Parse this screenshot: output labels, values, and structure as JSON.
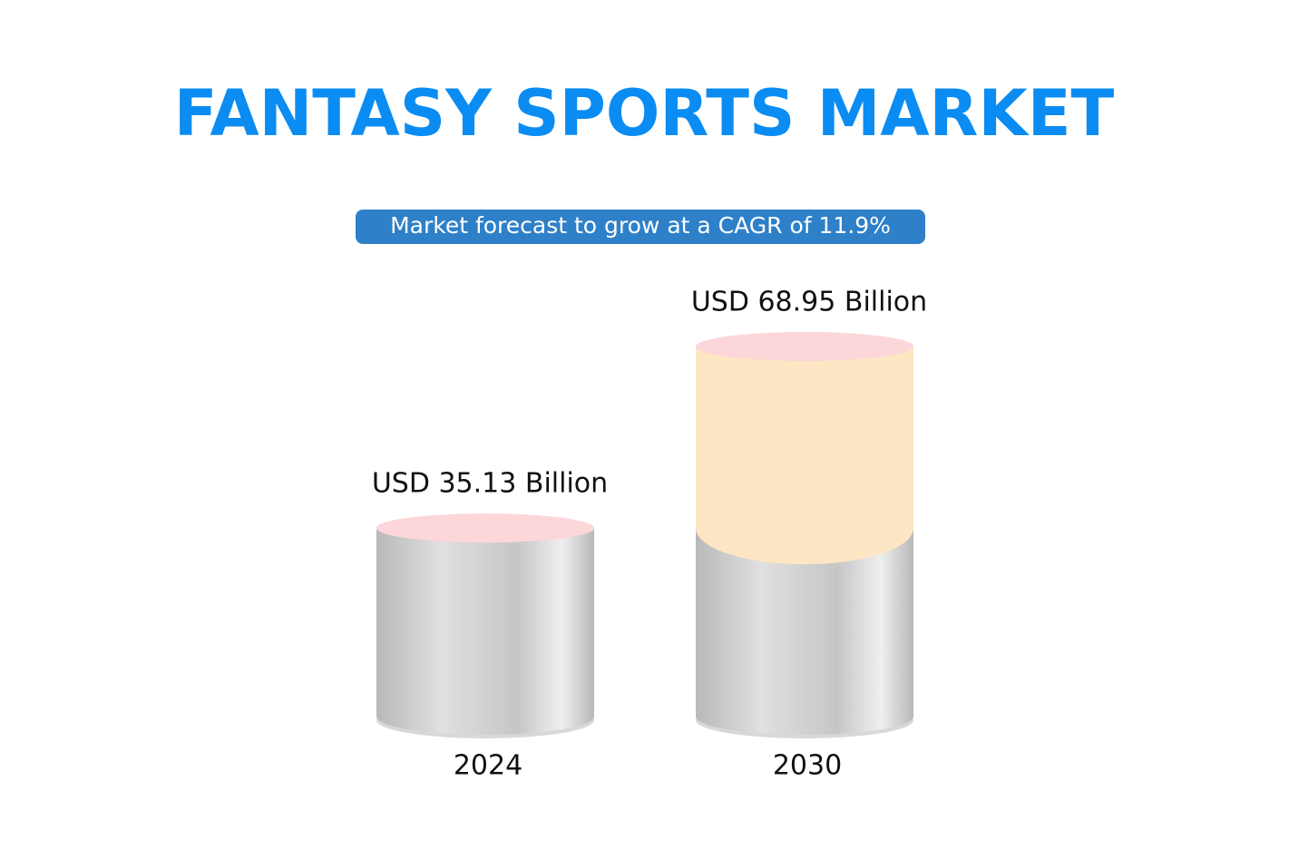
{
  "chart_data": {
    "type": "cylinder",
    "title": "FANTASY SPORTS MARKET",
    "subtitle": "Market forecast to grow at a CAGR of 11.9%",
    "categories": [
      "2024",
      "2030"
    ],
    "values": [
      35.13,
      68.95
    ],
    "value_labels": [
      "USD 35.13 Billion",
      "USD 68.95 Billion"
    ],
    "color": "#fde6c4"
  }
}
